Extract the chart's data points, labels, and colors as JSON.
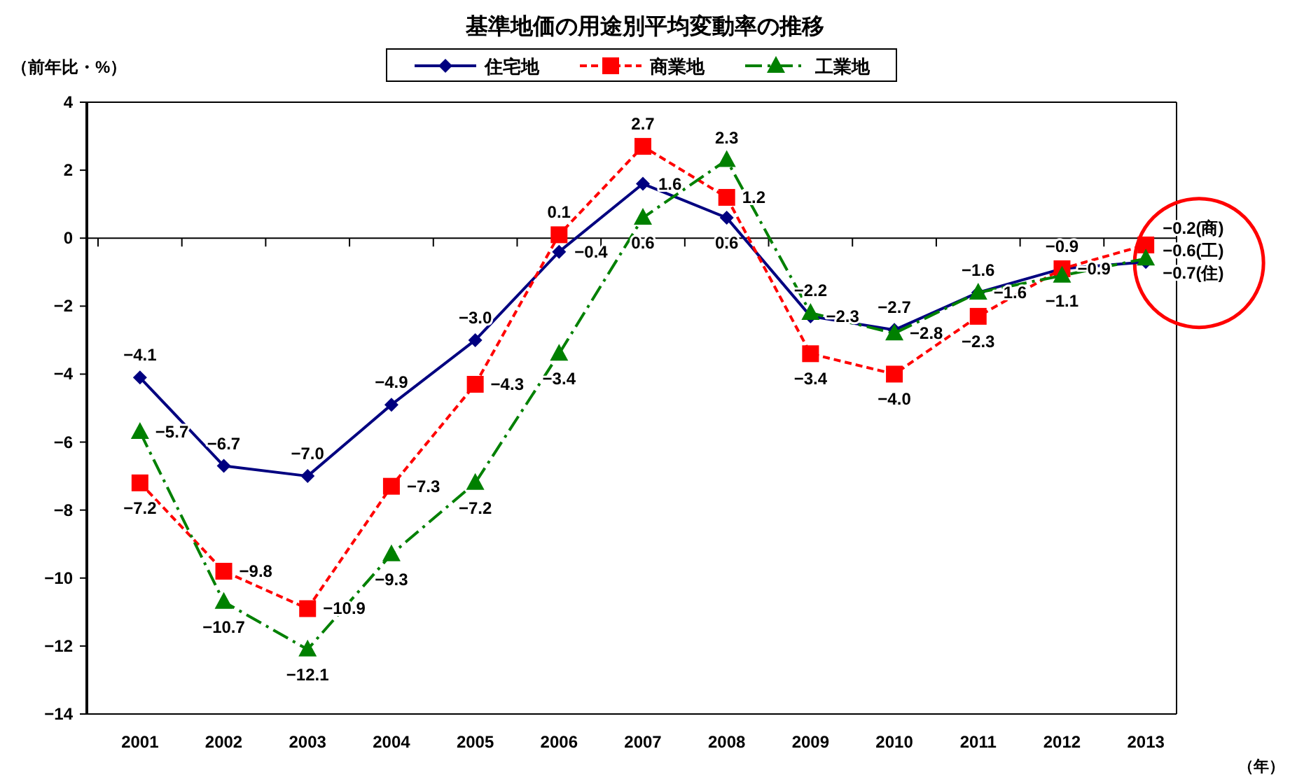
{
  "chart_data": {
    "type": "line",
    "title": "基準地価の用途別平均変動率の推移",
    "ylabel": "（前年比・%）",
    "annotations": [
      "（年）"
    ],
    "categories": [
      "2001",
      "2002",
      "2003",
      "2004",
      "2005",
      "2006",
      "2007",
      "2008",
      "2009",
      "2010",
      "2011",
      "2012",
      "2013"
    ],
    "series": [
      {
        "name": "住宅地",
        "color": "#000080",
        "marker": "diamond",
        "line_style": "solid",
        "values": [
          -4.1,
          -6.7,
          -7.0,
          -4.9,
          -3.0,
          -0.4,
          1.6,
          0.6,
          -2.3,
          -2.7,
          -1.6,
          -0.9,
          -0.7
        ],
        "value_labels": [
          "−4.1",
          "−6.7",
          "−7.0",
          "−4.9",
          "−3.0",
          "−0.4",
          "1.6",
          "0.6",
          "−2.3",
          "−2.7",
          "−1.6",
          "−0.9",
          "−0.7(住)"
        ]
      },
      {
        "name": "商業地",
        "color": "#ff0000",
        "marker": "square",
        "line_style": "dashed",
        "values": [
          -7.2,
          -9.8,
          -10.9,
          -7.3,
          -4.3,
          0.1,
          2.7,
          1.2,
          -3.4,
          -4.0,
          -2.3,
          -0.9,
          -0.2
        ],
        "value_labels": [
          "−7.2",
          "−9.8",
          "−10.9",
          "−7.3",
          "−4.3",
          "0.1",
          "2.7",
          "1.2",
          "−3.4",
          "−4.0",
          "−2.3",
          "−0.9",
          "−0.2(商)"
        ]
      },
      {
        "name": "工業地",
        "color": "#008000",
        "marker": "triangle",
        "line_style": "dashdot",
        "values": [
          -5.7,
          -10.7,
          -12.1,
          -9.3,
          -7.2,
          -3.4,
          0.6,
          2.3,
          -2.2,
          -2.8,
          -1.6,
          -1.1,
          -0.6
        ],
        "value_labels": [
          "−5.7",
          "−10.7",
          "−12.1",
          "−9.3",
          "−7.2",
          "−3.4",
          "0.6",
          "2.3",
          "−2.2",
          "−2.8",
          "−1.6",
          "−1.1",
          "−0.6(工)"
        ]
      }
    ],
    "ref_lines": [
      {
        "axis": "y",
        "value": 0,
        "color": "#000000"
      }
    ],
    "ylim": [
      -14,
      4
    ],
    "yticks": [
      -14,
      -12,
      -10,
      -8,
      -6,
      -4,
      -2,
      0,
      2,
      4
    ],
    "grid": false,
    "legend": "top"
  }
}
